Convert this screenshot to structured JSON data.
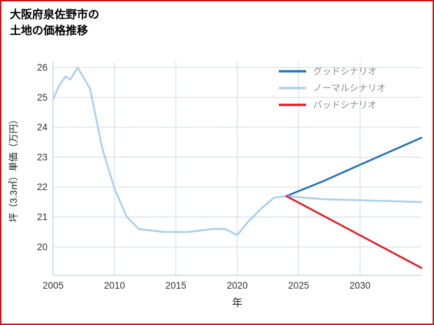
{
  "page": {
    "border_color": "#c81414",
    "background": "#ffffff"
  },
  "title": {
    "line1": "大阪府泉佐野市の",
    "line2": "土地の価格推移"
  },
  "chart_data": {
    "type": "line",
    "title": "大阪府泉佐野市の土地の価格推移",
    "xlabel": "年",
    "ylabel": "坪（3.3㎡）単価（万円）",
    "xlim": [
      2005,
      2035
    ],
    "ylim": [
      19.05,
      26.2
    ],
    "xticks": [
      2005,
      2010,
      2015,
      2020,
      2025,
      2030
    ],
    "yticks": [
      20,
      21,
      22,
      23,
      24,
      25,
      26
    ],
    "grid": true,
    "grid_color": "#d7e2f0",
    "axis_color": "#c9d7ea",
    "tick_label_color": "#333333",
    "axis_label_color": "#222222",
    "legend_position": "top-right",
    "legend_text_color": "#8a8a8a",
    "series": [
      {
        "id": "history",
        "legend": null,
        "color": "#a9cfee",
        "points": [
          [
            2005,
            24.95
          ],
          [
            2005.5,
            25.4
          ],
          [
            2006,
            25.7
          ],
          [
            2006.4,
            25.6
          ],
          [
            2007,
            26.0
          ],
          [
            2008,
            25.3
          ],
          [
            2009,
            23.3
          ],
          [
            2010,
            21.95
          ],
          [
            2011,
            21.0
          ],
          [
            2012,
            20.6
          ],
          [
            2013,
            20.55
          ],
          [
            2014,
            20.5
          ],
          [
            2015,
            20.5
          ],
          [
            2016,
            20.5
          ],
          [
            2017,
            20.55
          ],
          [
            2018,
            20.6
          ],
          [
            2019,
            20.6
          ],
          [
            2020,
            20.4
          ],
          [
            2021,
            20.9
          ],
          [
            2022,
            21.3
          ],
          [
            2023,
            21.65
          ],
          [
            2024,
            21.7
          ]
        ]
      },
      {
        "id": "good",
        "legend": "グッドシナリオ",
        "color": "#1c72b8",
        "points": [
          [
            2024,
            21.7
          ],
          [
            2027,
            22.2
          ],
          [
            2030,
            22.75
          ],
          [
            2035,
            23.65
          ]
        ]
      },
      {
        "id": "normal",
        "legend": "ノーマルシナリオ",
        "color": "#a9cfee",
        "points": [
          [
            2024,
            21.7
          ],
          [
            2027,
            21.6
          ],
          [
            2031,
            21.55
          ],
          [
            2035,
            21.5
          ]
        ]
      },
      {
        "id": "bad",
        "legend": "バッドシナリオ",
        "color": "#e8161c",
        "points": [
          [
            2024,
            21.7
          ],
          [
            2035,
            19.3
          ]
        ]
      }
    ]
  }
}
